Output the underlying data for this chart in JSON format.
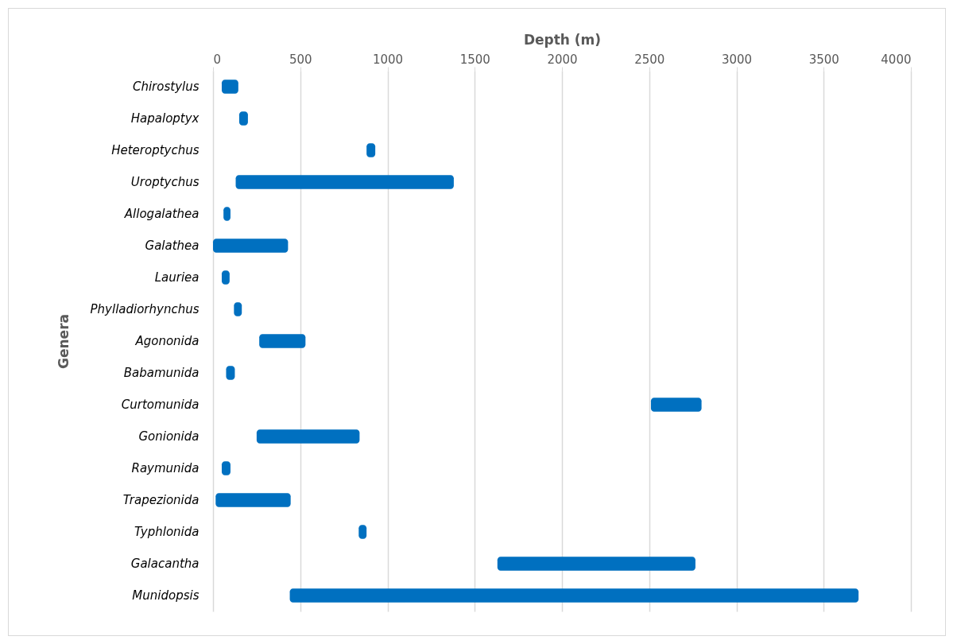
{
  "chart_data": {
    "type": "bar",
    "orientation": "horizontal",
    "xlabel": "Depth (m)",
    "ylabel": "Genera",
    "categories": [
      "Chirostylus",
      "Hapaloptyx",
      "Heteroptychus",
      "Uroptychus",
      "Allogalathea",
      "Galathea",
      "Lauriea",
      "Phylladiorhynchus",
      "Agononida",
      "Babamunida",
      "Curtomunida",
      "Gonionida",
      "Raymunida",
      "Trapezionida",
      "Typhlonida",
      "Galacantha",
      "Munidopsis"
    ],
    "base": [
      50,
      150,
      880,
      130,
      60,
      0,
      50,
      120,
      265,
      75,
      2510,
      250,
      50,
      15,
      835,
      1630,
      440
    ],
    "values": [
      95,
      50,
      50,
      1250,
      40,
      430,
      45,
      45,
      265,
      50,
      290,
      590,
      50,
      430,
      45,
      1135,
      3260
    ],
    "color": "#0070c0",
    "xlim": [
      0,
      4000
    ],
    "xticks": [
      0,
      500,
      1000,
      1500,
      2000,
      2500,
      3000,
      3500,
      4000
    ],
    "grid": "x"
  }
}
